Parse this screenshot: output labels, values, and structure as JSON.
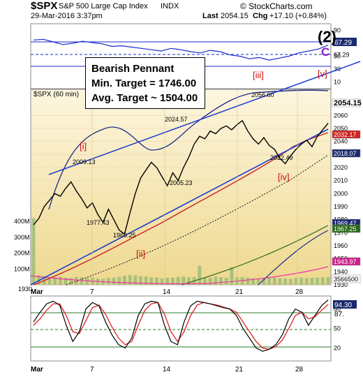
{
  "header": {
    "title": "$SPX",
    "subtitle": "S&P 500 Large Cap Index",
    "exchange": "INDX",
    "copyright": "© StockCharts.com",
    "date": "29-Mar-2016 3:37pm",
    "last_label": "Last",
    "last_value": "2054.15",
    "chg_label": "Chg",
    "chg_value": "+17.10 (+0.84%)"
  },
  "annotation_box": {
    "line1": "Bearish Pennant",
    "line2": "Min. Target = 1746.00",
    "line3": "Avg. Target ~ 1504.00"
  },
  "colors": {
    "price_bg_top": "#fdf6e0",
    "price_bg_bottom": "#efd98e",
    "trendline": "#1f3fd0",
    "wave_red": "#cc1111",
    "wave_purple": "#8a1fc8",
    "ma_red": "#cc2222",
    "ma_black_dotted": "#333333",
    "upper_band": "#1a2a8a",
    "volume": "#9cbc7a",
    "rsi_line": "#1a2acc",
    "stoch_k": "#000000",
    "stoch_d": "#dd1111",
    "badge_bg": "#1a2a6e"
  },
  "chart_data": [
    {
      "type": "line",
      "panel": "rsi",
      "ylim": [
        0,
        100
      ],
      "ticks": [
        "90",
        "67.29",
        "50",
        "30",
        "10"
      ],
      "current_label": "67.29",
      "wave_label": "(2)",
      "values": [
        75,
        76,
        72,
        68,
        70,
        73,
        71,
        69,
        65,
        66,
        64,
        62,
        60,
        58,
        62,
        60,
        57,
        55,
        59,
        57,
        52,
        50,
        46,
        48,
        44,
        47,
        50,
        55,
        58,
        61,
        67
      ]
    },
    {
      "type": "line",
      "panel": "price",
      "title": "$SPX (60 min)",
      "ylim": [
        1930,
        2080
      ],
      "ticks": [
        "2060",
        "2050",
        "2040",
        "2030",
        "2020",
        "2010",
        "2000",
        "1990",
        "1980",
        "1970",
        "1960",
        "1950",
        "1940",
        "1930"
      ],
      "badges": [
        "2054.15",
        "2032.17",
        "2018.07",
        "1969.47",
        "1967.25",
        "1943.97",
        "1930",
        "3566500"
      ],
      "volume_ticks": [
        "400M",
        "300M",
        "200M",
        "100M"
      ],
      "x_ticks": [
        "Mar",
        "7",
        "14",
        "21",
        "28"
      ],
      "price_labels": [
        "2009.13",
        "1977.43",
        "1969.25",
        "2024.57",
        "2005.23",
        "2056.60",
        "2022.49"
      ],
      "wave_labels": [
        "[i]",
        "[ii]",
        "[iii]",
        "[iv]",
        "[v]",
        "C"
      ],
      "close": [
        1976,
        1981,
        1990,
        1995,
        2000,
        1998,
        2004,
        2009,
        2002,
        1996,
        1989,
        1993,
        1984,
        1978,
        1988,
        1980,
        1972,
        1969,
        1985,
        2000,
        2012,
        2018,
        2024,
        2020,
        2013,
        2006,
        2016,
        2010,
        2020,
        2028,
        2038,
        2044,
        2042,
        2048,
        2046,
        2050,
        2052,
        2049,
        2053,
        2056,
        2048,
        2042,
        2038,
        2043,
        2037,
        2034,
        2027,
        2023,
        2029,
        2034,
        2038,
        2041,
        2036,
        2044,
        2049,
        2054
      ],
      "volume": [
        420,
        60,
        55,
        50,
        48,
        52,
        46,
        44,
        50,
        48,
        42,
        45,
        40,
        38,
        44,
        46,
        52,
        58,
        62,
        60,
        55,
        52,
        48,
        46,
        40,
        44,
        46,
        50,
        52,
        48,
        50,
        120,
        46,
        44,
        52,
        48,
        45,
        110,
        48,
        50,
        46,
        42,
        40,
        44,
        48,
        46,
        42,
        40,
        38,
        44,
        46,
        42,
        44,
        46,
        48,
        50
      ]
    },
    {
      "type": "line",
      "panel": "stochastic",
      "ylim": [
        0,
        100
      ],
      "ticks": [
        "80",
        "50",
        "20"
      ],
      "current_label": "94.30",
      "current_label2": "87.",
      "x_ticks": [
        "Mar",
        "7",
        "14",
        "21",
        "28"
      ],
      "k": [
        60,
        75,
        88,
        92,
        86,
        55,
        30,
        45,
        80,
        90,
        85,
        60,
        40,
        25,
        20,
        35,
        70,
        88,
        92,
        90,
        55,
        30,
        25,
        60,
        85,
        92,
        90,
        88,
        85,
        82,
        80,
        70,
        50,
        35,
        20,
        15,
        18,
        25,
        40,
        65,
        80,
        75,
        55,
        70,
        85,
        94
      ],
      "d": [
        55,
        65,
        78,
        88,
        88,
        70,
        45,
        42,
        62,
        82,
        86,
        72,
        52,
        35,
        25,
        30,
        55,
        78,
        88,
        90,
        72,
        45,
        30,
        45,
        70,
        86,
        90,
        88,
        86,
        83,
        80,
        75,
        60,
        45,
        30,
        20,
        18,
        22,
        32,
        50,
        70,
        75,
        65,
        68,
        78,
        87
      ]
    }
  ]
}
